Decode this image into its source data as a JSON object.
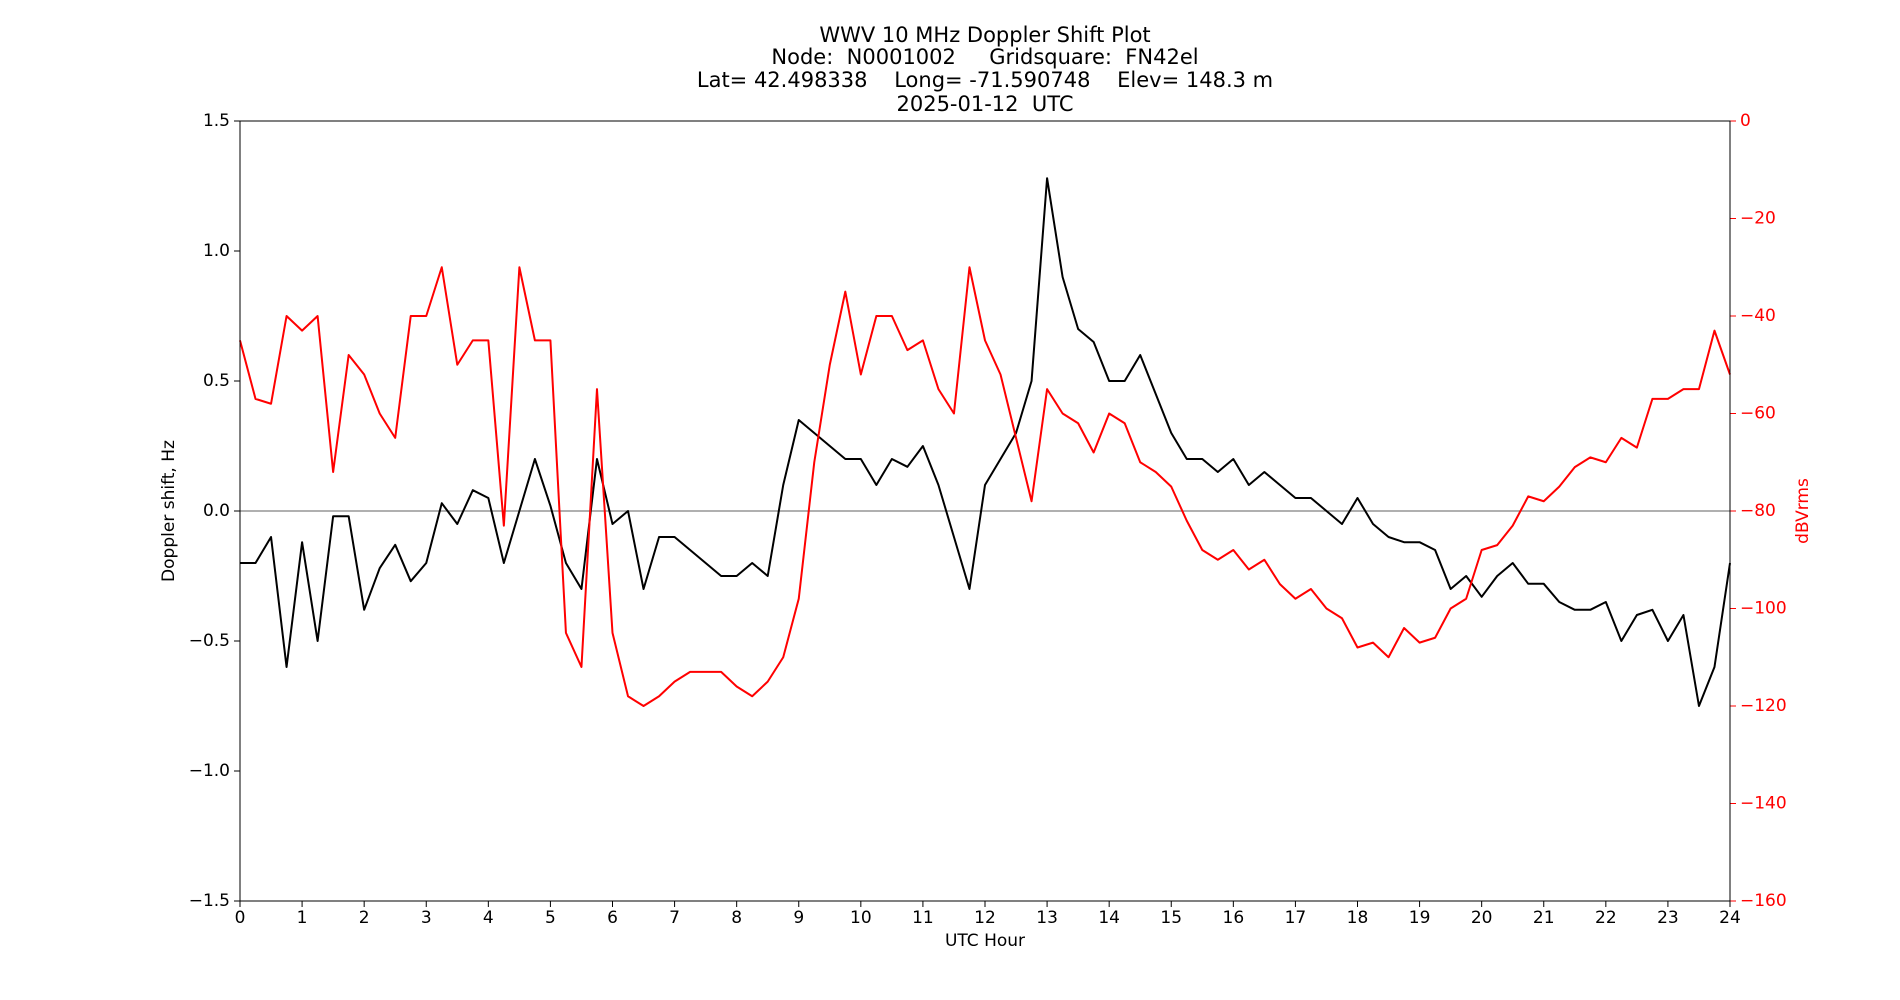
{
  "chart_data": {
    "type": "line",
    "title_lines": [
      "WWV 10 MHz Doppler Shift Plot",
      "Node:  N0001002     Gridsquare:  FN42el",
      "Lat= 42.498338    Long= -71.590748    Elev= 148.3 m",
      "2025-01-12  UTC"
    ],
    "x_label": "UTC Hour",
    "y_label": "Doppler shift, Hz",
    "y2_label": "dBVrms",
    "y2_color": "#ff0000",
    "x": [
      0,
      0.25,
      0.5,
      0.75,
      1,
      1.25,
      1.5,
      1.75,
      2,
      2.25,
      2.5,
      2.75,
      3,
      3.25,
      3.5,
      3.75,
      4,
      4.25,
      4.5,
      4.75,
      5,
      5.25,
      5.5,
      5.75,
      6,
      6.25,
      6.5,
      6.75,
      7,
      7.25,
      7.5,
      7.75,
      8,
      8.25,
      8.5,
      8.75,
      9,
      9.25,
      9.5,
      9.75,
      10,
      10.25,
      10.5,
      10.75,
      11,
      11.25,
      11.5,
      11.75,
      12,
      12.25,
      12.5,
      12.75,
      13,
      13.25,
      13.5,
      13.75,
      14,
      14.25,
      14.5,
      14.75,
      15,
      15.25,
      15.5,
      15.75,
      16,
      16.25,
      16.5,
      16.75,
      17,
      17.25,
      17.5,
      17.75,
      18,
      18.25,
      18.5,
      18.75,
      19,
      19.25,
      19.5,
      19.75,
      20,
      20.25,
      20.5,
      20.75,
      21,
      21.25,
      21.5,
      21.75,
      22,
      22.25,
      22.5,
      22.75,
      23,
      23.25,
      23.5,
      23.75,
      24
    ],
    "series": [
      {
        "name": "Doppler shift",
        "color": "#000000",
        "axis": "y",
        "values": [
          -0.2,
          -0.2,
          -0.1,
          -0.6,
          -0.12,
          -0.5,
          -0.02,
          -0.02,
          -0.38,
          -0.22,
          -0.13,
          -0.27,
          -0.2,
          0.03,
          -0.05,
          0.08,
          0.05,
          -0.2,
          0.0,
          0.2,
          0.02,
          -0.2,
          -0.3,
          0.2,
          -0.05,
          0.0,
          -0.3,
          -0.1,
          -0.1,
          -0.15,
          -0.2,
          -0.25,
          -0.25,
          -0.2,
          -0.25,
          0.1,
          0.35,
          0.3,
          0.25,
          0.2,
          0.2,
          0.1,
          0.2,
          0.17,
          0.25,
          0.1,
          -0.1,
          -0.3,
          0.1,
          0.2,
          0.3,
          0.5,
          1.28,
          0.9,
          0.7,
          0.65,
          0.5,
          0.5,
          0.6,
          0.45,
          0.3,
          0.2,
          0.2,
          0.15,
          0.2,
          0.1,
          0.15,
          0.1,
          0.05,
          0.05,
          0.0,
          -0.05,
          0.05,
          -0.05,
          -0.1,
          -0.12,
          -0.12,
          -0.15,
          -0.3,
          -0.25,
          -0.33,
          -0.25,
          -0.2,
          -0.28,
          -0.28,
          -0.35,
          -0.38,
          -0.38,
          -0.35,
          -0.5,
          -0.4,
          -0.38,
          -0.5,
          -0.4,
          -0.75,
          -0.6,
          -0.2
        ]
      },
      {
        "name": "dBVrms",
        "color": "#ff0000",
        "axis": "y2",
        "values": [
          -45,
          -57,
          -58,
          -40,
          -43,
          -40,
          -72,
          -48,
          -52,
          -60,
          -65,
          -40,
          -40,
          -30,
          -50,
          -45,
          -45,
          -83,
          -30,
          -45,
          -45,
          -105,
          -112,
          -55,
          -105,
          -118,
          -120,
          -118,
          -115,
          -113,
          -113,
          -113,
          -116,
          -118,
          -115,
          -110,
          -98,
          -70,
          -50,
          -35,
          -52,
          -40,
          -40,
          -47,
          -45,
          -55,
          -60,
          -30,
          -45,
          -52,
          -65,
          -78,
          -55,
          -60,
          -62,
          -68,
          -60,
          -62,
          -70,
          -72,
          -75,
          -82,
          -88,
          -90,
          -88,
          -92,
          -90,
          -95,
          -98,
          -96,
          -100,
          -102,
          -108,
          -107,
          -110,
          -104,
          -107,
          -106,
          -100,
          -98,
          -88,
          -87,
          -83,
          -77,
          -78,
          -75,
          -71,
          -69,
          -70,
          -65,
          -67,
          -57,
          -57,
          -55,
          -55,
          -43,
          -52
        ]
      }
    ],
    "xlim": [
      0,
      24
    ],
    "xticks": [
      0,
      1,
      2,
      3,
      4,
      5,
      6,
      7,
      8,
      9,
      10,
      11,
      12,
      13,
      14,
      15,
      16,
      17,
      18,
      19,
      20,
      21,
      22,
      23,
      24
    ],
    "ylim": [
      -1.5,
      1.5
    ],
    "yticks": [
      {
        "value": -1.5,
        "label": "−1.5"
      },
      {
        "value": -1.0,
        "label": "−1.0"
      },
      {
        "value": -0.5,
        "label": "−0.5"
      },
      {
        "value": 0,
        "label": "0.0"
      },
      0.5,
      {
        "value": 1.0,
        "label": "1.0"
      },
      1.5
    ],
    "y2lim": [
      -160,
      0
    ],
    "y2ticks": [
      {
        "value": -160,
        "label": "−160"
      },
      {
        "value": -140,
        "label": "−140"
      },
      {
        "value": -120,
        "label": "−120"
      },
      {
        "value": -100,
        "label": "−100"
      },
      {
        "value": -80,
        "label": "−80"
      },
      {
        "value": -60,
        "label": "−60"
      },
      {
        "value": -40,
        "label": "−40"
      },
      {
        "value": -20,
        "label": "−20"
      },
      0
    ],
    "zero_line": true,
    "grid": false
  }
}
